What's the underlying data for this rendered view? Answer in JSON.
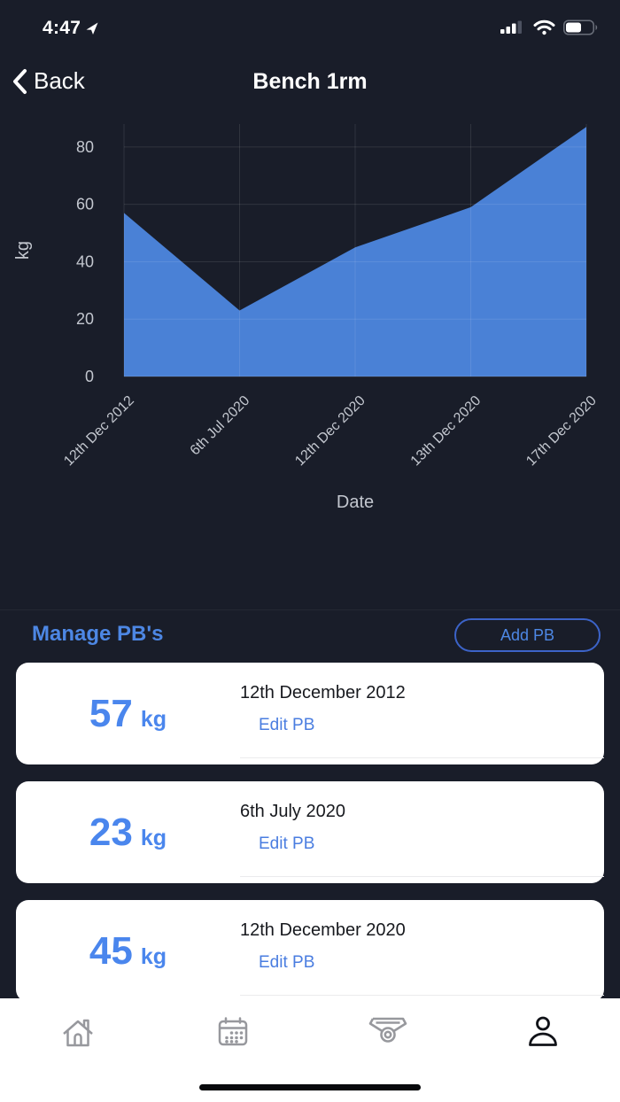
{
  "status_bar": {
    "time": "4:47"
  },
  "nav": {
    "back_label": "Back",
    "title": "Bench 1rm"
  },
  "chart_data": {
    "type": "area",
    "title": "",
    "x": [
      "12th Dec 2012",
      "6th Jul 2020",
      "12th Dec 2020",
      "13th Dec 2020",
      "17th Dec 2020"
    ],
    "values": [
      57,
      23,
      45,
      59,
      87
    ],
    "xlabel": "Date",
    "ylabel": "kg",
    "ylim": [
      0,
      88
    ],
    "yticks": [
      0,
      20,
      40,
      60,
      80
    ],
    "grid": true,
    "legend": "none",
    "fill_color": "#4a81d6"
  },
  "manage": {
    "heading": "Manage PB's",
    "add_button_label": "Add PB",
    "unit": "kg",
    "edit_label": "Edit PB",
    "pbs": [
      {
        "value": "57",
        "date": "12th December 2012"
      },
      {
        "value": "23",
        "date": "6th July 2020"
      },
      {
        "value": "45",
        "date": "12th December 2020"
      }
    ]
  },
  "tab_bar": {
    "tabs": [
      "home",
      "calendar",
      "awards",
      "profile"
    ],
    "active_tab": "profile"
  },
  "colors": {
    "background": "#191d29",
    "accent_blue": "#4d87e4",
    "value_blue": "#4a86ed",
    "area_fill": "#4a81d6",
    "tick_text": "#c3c7cf",
    "card_bg": "#ffffff",
    "tab_inactive": "#97989d",
    "tab_active": "#101218"
  }
}
